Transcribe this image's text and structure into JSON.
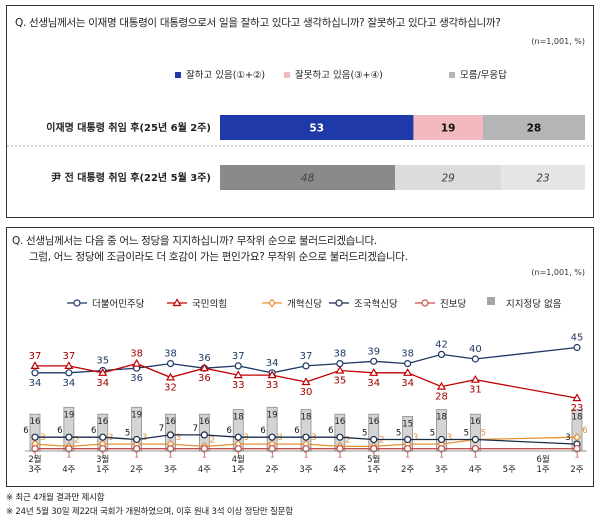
{
  "panel1": {
    "question": "Q. 선생님께서는 이재명 대통령이 대통령으로서 일을 잘하고 있다고 생각하십니까? 잘못하고 있다고 생각하십니까?",
    "sample": "(n=1,001, %)"
  },
  "panel2": {
    "question_line1": "Q. 선생님께서는 다음 중 어느 정당을 지지하십니까? 무작위 순으로 불러드리겠습니다.",
    "question_line2": "그럼, 어느 정당에 조금이라도 더 호감이 가는 편인가요? 무작위 순으로 불러드리겠습니다.",
    "sample": "(n=1,001, %)"
  },
  "notes": [
    "※ 최근 4개월 결과만 제시함",
    "※ 24년 5월 30일 제22대 국회가 개원하였으며, 이후 원내 3석 이상 정당만 질문함"
  ],
  "colors": {
    "approve": "#1f3aa8",
    "disapprove": "#f2b9bf",
    "dont_know": "#b5b5b5",
    "approve_past": "#8a8a8a",
    "disapprove_past": "#dcdcdc",
    "dont_know_past": "#e6e6e6",
    "democratic": "#1f3864",
    "ppp": "#c00000",
    "reform": "#e69138",
    "rebuilding": "#1a2b4a",
    "progressive": "#c0504d",
    "none": "#a6a6a6"
  },
  "chart_data": [
    {
      "type": "bar",
      "orientation": "horizontal",
      "stacked": true,
      "categories": [
        "이재명 대통령 취임 후(25년 6월 2주)",
        "尹 전 대통령 취임 후(22년 5월 3주)"
      ],
      "series": [
        {
          "name": "잘하고 있음(①+②)",
          "values": [
            53,
            48
          ]
        },
        {
          "name": "잘못하고 있음(③+④)",
          "values": [
            19,
            29
          ]
        },
        {
          "name": "모름/무응답",
          "values": [
            28,
            23
          ]
        }
      ],
      "xlim": [
        0,
        100
      ],
      "legend": "top"
    },
    {
      "type": "line",
      "x": [
        "2월 3주",
        "4주",
        "3월 1주",
        "2주",
        "3주",
        "4주",
        "4월 1주",
        "2주",
        "3주",
        "4주",
        "5월 1주",
        "2주",
        "3주",
        "4주",
        "5주",
        "6월 1주",
        "2주"
      ],
      "series": [
        {
          "name": "더불어민주당",
          "values": [
            34,
            34,
            35,
            36,
            38,
            36,
            37,
            34,
            37,
            38,
            39,
            38,
            42,
            40,
            null,
            null,
            45
          ]
        },
        {
          "name": "국민의힘",
          "values": [
            37,
            37,
            34,
            38,
            32,
            36,
            33,
            33,
            30,
            35,
            34,
            34,
            28,
            31,
            null,
            null,
            23
          ]
        },
        {
          "name": "개혁신당",
          "values": [
            3,
            2,
            3,
            3,
            3,
            2,
            3,
            3,
            3,
            2,
            2,
            3,
            3,
            5,
            null,
            null,
            6
          ]
        },
        {
          "name": "조국혁신당",
          "values": [
            6,
            6,
            6,
            5,
            7,
            7,
            6,
            6,
            6,
            6,
            5,
            5,
            5,
            5,
            null,
            null,
            3
          ]
        },
        {
          "name": "진보당",
          "values": [
            1,
            1,
            1,
            1,
            1,
            1,
            1,
            1,
            1,
            1,
            1,
            1,
            1,
            1,
            null,
            null,
            1
          ]
        },
        {
          "name": "지지정당 없음",
          "type": "bar",
          "values": [
            16,
            19,
            16,
            19,
            16,
            16,
            18,
            19,
            18,
            16,
            16,
            15,
            18,
            16,
            null,
            null,
            18
          ]
        }
      ],
      "ylim": [
        0,
        50
      ],
      "legend": "top",
      "grid": false
    }
  ]
}
